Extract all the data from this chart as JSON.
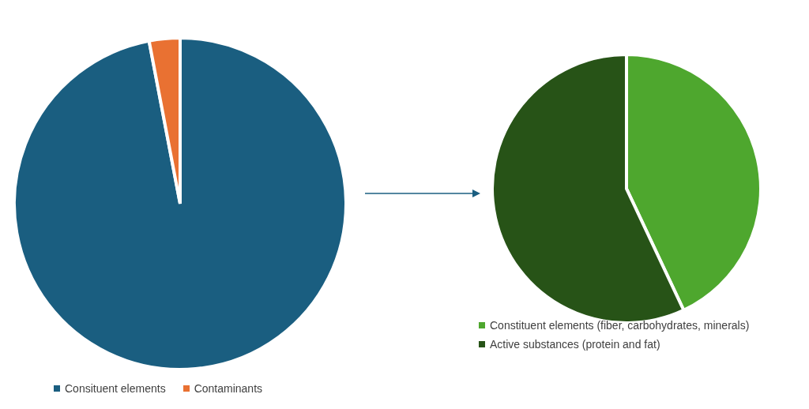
{
  "chart_data": [
    {
      "type": "pie",
      "categories": [
        "Consituent elements",
        "Contaminants"
      ],
      "values": [
        97,
        3
      ],
      "colors": [
        "#1a5e80",
        "#e97132"
      ],
      "legend": "bottom"
    },
    {
      "type": "pie",
      "categories": [
        "Constituent elements (fiber, carbohydrates, minerals)",
        "Active substances (protein and fat)"
      ],
      "values": [
        43,
        57
      ],
      "colors": [
        "#4ea72e",
        "#275317"
      ],
      "legend": "bottom"
    }
  ]
}
